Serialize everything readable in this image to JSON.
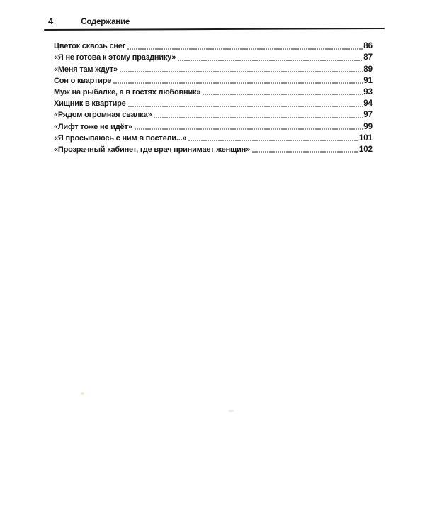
{
  "page": {
    "folio": "4",
    "header_title": "Содержание",
    "background_color": "#ffffff",
    "ink_color": "#1d1d1d"
  },
  "toc": {
    "entries": [
      {
        "title": "Цветок сквозь снег",
        "page": "86"
      },
      {
        "title": "«Я не готова к этому празднику»",
        "page": "87"
      },
      {
        "title": "«Меня там ждут»",
        "page": "89"
      },
      {
        "title": "Сон о квартире",
        "page": "91"
      },
      {
        "title": "Муж на рыбалке, а в гостях любовник»",
        "page": "93"
      },
      {
        "title": "Хищник в квартире",
        "page": "94"
      },
      {
        "title": "«Рядом огромная свалка»",
        "page": "97"
      },
      {
        "title": "«Лифт тоже не идёт»",
        "page": "99"
      },
      {
        "title": "«Я просыпаюсь с ним в постели...»",
        "page": "101"
      },
      {
        "title": "«Прозрачный кабинет, где врач принимает женщин»",
        "page": "102"
      }
    ]
  }
}
